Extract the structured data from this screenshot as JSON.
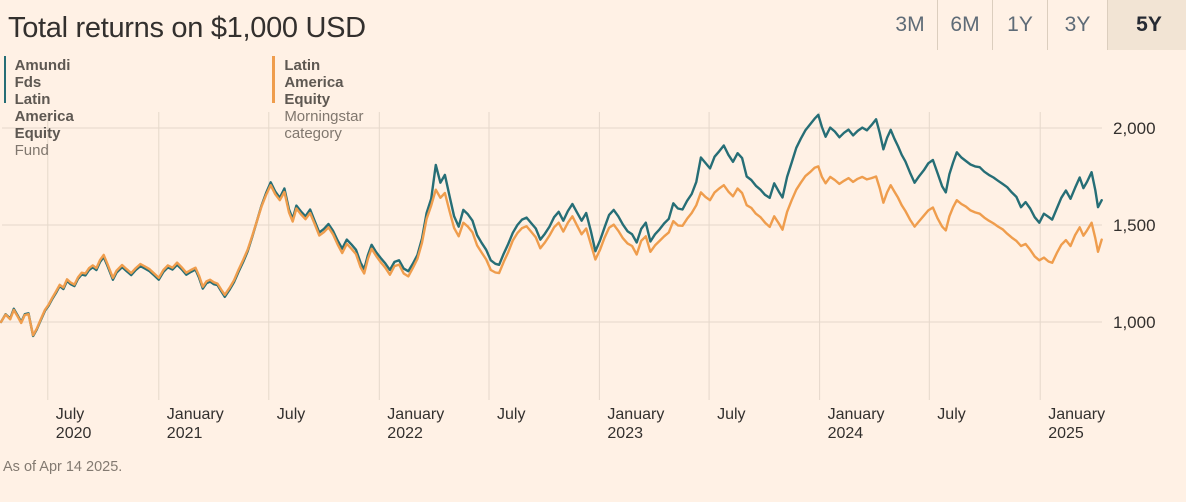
{
  "title": "Total returns on $1,000 USD",
  "footer": {
    "as_of": "As of Apr 14 2025."
  },
  "ranges": [
    {
      "label": "3M",
      "selected": false
    },
    {
      "label": "6M",
      "selected": false
    },
    {
      "label": "1Y",
      "selected": false
    },
    {
      "label": "3Y",
      "selected": false
    },
    {
      "label": "5Y",
      "selected": true
    }
  ],
  "legend": [
    {
      "name": "Amundi Fds Latin America Equity",
      "sub": "Fund",
      "color": "#266E76"
    },
    {
      "name": "Latin America Equity",
      "sub": "Morningstar category",
      "color": "#EF9D4D"
    }
  ],
  "chart_data": {
    "type": "line",
    "title": "Total returns on $1,000 USD",
    "x_unit": "months since 14 Apr 2020",
    "x_range_months": [
      0,
      60
    ],
    "grid": true,
    "grid_color": "#E5D8CB",
    "tick_label_color": "#33302E",
    "ylim": [
      870,
      2150
    ],
    "y_ticks": [
      {
        "v": 1000,
        "label": "1,000"
      },
      {
        "v": 1500,
        "label": "1,500"
      },
      {
        "v": 2000,
        "label": "2,000"
      }
    ],
    "x_ticks": [
      {
        "m": 2.55,
        "line1": "July",
        "line2": "2020"
      },
      {
        "m": 8.6,
        "line1": "January",
        "line2": "2021"
      },
      {
        "m": 14.6,
        "line1": "July",
        "line2": ""
      },
      {
        "m": 20.62,
        "line1": "January",
        "line2": "2022"
      },
      {
        "m": 26.6,
        "line1": "July",
        "line2": ""
      },
      {
        "m": 32.62,
        "line1": "January",
        "line2": "2023"
      },
      {
        "m": 38.6,
        "line1": "July",
        "line2": ""
      },
      {
        "m": 44.62,
        "line1": "January",
        "line2": "2024"
      },
      {
        "m": 50.6,
        "line1": "July",
        "line2": ""
      },
      {
        "m": 56.65,
        "line1": "January",
        "line2": "2025"
      }
    ],
    "series": [
      {
        "name": "Amundi Fds Latin America Equity Fund",
        "color": "#266E76",
        "col": 1
      },
      {
        "name": "Latin America Equity Morningstar category",
        "color": "#EF9D4D",
        "col": 2
      }
    ],
    "rows": [
      [
        0,
        1000,
        1000
      ],
      [
        0.25,
        1040,
        1038
      ],
      [
        0.5,
        1018,
        1014
      ],
      [
        0.7,
        1068,
        1062
      ],
      [
        0.9,
        1035,
        1030
      ],
      [
        1.1,
        1000,
        995
      ],
      [
        1.3,
        1040,
        1036
      ],
      [
        1.5,
        1045,
        1040
      ],
      [
        1.75,
        928,
        932
      ],
      [
        1.95,
        962,
        966
      ],
      [
        2.15,
        1005,
        1010
      ],
      [
        2.4,
        1058,
        1063
      ],
      [
        2.6,
        1085,
        1090
      ],
      [
        2.8,
        1120,
        1126
      ],
      [
        3,
        1150,
        1157
      ],
      [
        3.2,
        1185,
        1192
      ],
      [
        3.4,
        1170,
        1178
      ],
      [
        3.6,
        1212,
        1220
      ],
      [
        3.8,
        1195,
        1203
      ],
      [
        4,
        1185,
        1193
      ],
      [
        4.2,
        1222,
        1230
      ],
      [
        4.4,
        1245,
        1254
      ],
      [
        4.6,
        1240,
        1250
      ],
      [
        4.8,
        1268,
        1278
      ],
      [
        5,
        1282,
        1292
      ],
      [
        5.2,
        1268,
        1278
      ],
      [
        5.4,
        1310,
        1320
      ],
      [
        5.6,
        1335,
        1346
      ],
      [
        5.8,
        1290,
        1300
      ],
      [
        6.1,
        1218,
        1228
      ],
      [
        6.3,
        1255,
        1265
      ],
      [
        6.6,
        1283,
        1294
      ],
      [
        6.85,
        1262,
        1272
      ],
      [
        7.1,
        1242,
        1252
      ],
      [
        7.35,
        1268,
        1278
      ],
      [
        7.6,
        1288,
        1299
      ],
      [
        7.85,
        1275,
        1286
      ],
      [
        8.1,
        1262,
        1272
      ],
      [
        8.35,
        1240,
        1250
      ],
      [
        8.6,
        1218,
        1228
      ],
      [
        8.85,
        1258,
        1268
      ],
      [
        9.1,
        1282,
        1292
      ],
      [
        9.35,
        1270,
        1280
      ],
      [
        9.6,
        1295,
        1306
      ],
      [
        9.85,
        1272,
        1282
      ],
      [
        10.1,
        1244,
        1254
      ],
      [
        10.35,
        1258,
        1268
      ],
      [
        10.6,
        1270,
        1280
      ],
      [
        10.8,
        1228,
        1238
      ],
      [
        11,
        1172,
        1182
      ],
      [
        11.2,
        1200,
        1210
      ],
      [
        11.4,
        1208,
        1218
      ],
      [
        11.6,
        1195,
        1205
      ],
      [
        11.8,
        1190,
        1198
      ],
      [
        12,
        1160,
        1168
      ],
      [
        12.2,
        1130,
        1140
      ],
      [
        12.45,
        1165,
        1175
      ],
      [
        12.7,
        1205,
        1215
      ],
      [
        12.95,
        1260,
        1270
      ],
      [
        13.2,
        1310,
        1320
      ],
      [
        13.45,
        1365,
        1373
      ],
      [
        13.7,
        1440,
        1445
      ],
      [
        13.95,
        1520,
        1520
      ],
      [
        14.2,
        1600,
        1595
      ],
      [
        14.45,
        1665,
        1655
      ],
      [
        14.7,
        1720,
        1705
      ],
      [
        14.95,
        1672,
        1658
      ],
      [
        15.2,
        1640,
        1628
      ],
      [
        15.45,
        1688,
        1670
      ],
      [
        15.7,
        1580,
        1565
      ],
      [
        15.9,
        1532,
        1518
      ],
      [
        16.1,
        1600,
        1585
      ],
      [
        16.35,
        1570,
        1555
      ],
      [
        16.6,
        1545,
        1530
      ],
      [
        16.85,
        1580,
        1562
      ],
      [
        17.1,
        1520,
        1505
      ],
      [
        17.35,
        1462,
        1446
      ],
      [
        17.6,
        1480,
        1463
      ],
      [
        17.85,
        1505,
        1488
      ],
      [
        18.1,
        1470,
        1452
      ],
      [
        18.35,
        1420,
        1400
      ],
      [
        18.6,
        1378,
        1355
      ],
      [
        18.85,
        1425,
        1403
      ],
      [
        19.1,
        1400,
        1378
      ],
      [
        19.35,
        1372,
        1350
      ],
      [
        19.6,
        1305,
        1282
      ],
      [
        19.8,
        1272,
        1250
      ],
      [
        20,
        1345,
        1325
      ],
      [
        20.2,
        1398,
        1378
      ],
      [
        20.45,
        1360,
        1340
      ],
      [
        20.7,
        1330,
        1308
      ],
      [
        20.95,
        1302,
        1280
      ],
      [
        21.2,
        1268,
        1244
      ],
      [
        21.45,
        1310,
        1288
      ],
      [
        21.7,
        1318,
        1296
      ],
      [
        21.95,
        1275,
        1250
      ],
      [
        22.2,
        1262,
        1235
      ],
      [
        22.45,
        1300,
        1278
      ],
      [
        22.7,
        1345,
        1325
      ],
      [
        22.95,
        1430,
        1408
      ],
      [
        23.2,
        1562,
        1532
      ],
      [
        23.45,
        1635,
        1600
      ],
      [
        23.7,
        1810,
        1682
      ],
      [
        23.95,
        1718,
        1640
      ],
      [
        24.2,
        1758,
        1665
      ],
      [
        24.45,
        1650,
        1572
      ],
      [
        24.7,
        1545,
        1485
      ],
      [
        24.95,
        1492,
        1442
      ],
      [
        25.2,
        1578,
        1512
      ],
      [
        25.45,
        1555,
        1492
      ],
      [
        25.7,
        1522,
        1462
      ],
      [
        25.95,
        1448,
        1395
      ],
      [
        26.2,
        1408,
        1358
      ],
      [
        26.45,
        1372,
        1322
      ],
      [
        26.7,
        1318,
        1268
      ],
      [
        26.95,
        1300,
        1255
      ],
      [
        27.15,
        1295,
        1252
      ],
      [
        27.4,
        1352,
        1310
      ],
      [
        27.65,
        1402,
        1360
      ],
      [
        27.9,
        1460,
        1420
      ],
      [
        28.15,
        1500,
        1458
      ],
      [
        28.4,
        1528,
        1484
      ],
      [
        28.65,
        1538,
        1494
      ],
      [
        28.9,
        1510,
        1465
      ],
      [
        29.15,
        1482,
        1436
      ],
      [
        29.4,
        1425,
        1380
      ],
      [
        29.65,
        1455,
        1410
      ],
      [
        29.9,
        1492,
        1446
      ],
      [
        30.15,
        1540,
        1488
      ],
      [
        30.4,
        1568,
        1512
      ],
      [
        30.65,
        1522,
        1466
      ],
      [
        30.9,
        1572,
        1512
      ],
      [
        31.15,
        1608,
        1545
      ],
      [
        31.4,
        1565,
        1498
      ],
      [
        31.65,
        1522,
        1452
      ],
      [
        31.9,
        1562,
        1482
      ],
      [
        32.15,
        1470,
        1402
      ],
      [
        32.4,
        1365,
        1322
      ],
      [
        32.65,
        1420,
        1372
      ],
      [
        32.9,
        1488,
        1435
      ],
      [
        33.15,
        1552,
        1486
      ],
      [
        33.4,
        1578,
        1502
      ],
      [
        33.65,
        1545,
        1470
      ],
      [
        33.9,
        1502,
        1432
      ],
      [
        34.15,
        1468,
        1405
      ],
      [
        34.4,
        1452,
        1392
      ],
      [
        34.65,
        1410,
        1348
      ],
      [
        34.9,
        1480,
        1418
      ],
      [
        35.15,
        1512,
        1442
      ],
      [
        35.4,
        1415,
        1362
      ],
      [
        35.65,
        1452,
        1395
      ],
      [
        35.9,
        1478,
        1418
      ],
      [
        36.15,
        1508,
        1442
      ],
      [
        36.4,
        1532,
        1462
      ],
      [
        36.65,
        1612,
        1520
      ],
      [
        36.9,
        1585,
        1498
      ],
      [
        37.15,
        1580,
        1496
      ],
      [
        37.4,
        1625,
        1532
      ],
      [
        37.65,
        1660,
        1562
      ],
      [
        37.9,
        1722,
        1602
      ],
      [
        38.15,
        1848,
        1668
      ],
      [
        38.4,
        1820,
        1645
      ],
      [
        38.65,
        1792,
        1628
      ],
      [
        38.9,
        1852,
        1668
      ],
      [
        39.15,
        1880,
        1688
      ],
      [
        39.4,
        1910,
        1705
      ],
      [
        39.65,
        1862,
        1672
      ],
      [
        39.9,
        1826,
        1648
      ],
      [
        40.15,
        1870,
        1688
      ],
      [
        40.4,
        1845,
        1665
      ],
      [
        40.65,
        1750,
        1602
      ],
      [
        40.9,
        1732,
        1588
      ],
      [
        41.15,
        1702,
        1558
      ],
      [
        41.4,
        1682,
        1540
      ],
      [
        41.65,
        1655,
        1512
      ],
      [
        41.9,
        1640,
        1490
      ],
      [
        42.15,
        1715,
        1545
      ],
      [
        42.4,
        1672,
        1508
      ],
      [
        42.6,
        1642,
        1476
      ],
      [
        42.85,
        1748,
        1568
      ],
      [
        43.1,
        1822,
        1628
      ],
      [
        43.35,
        1898,
        1682
      ],
      [
        43.6,
        1945,
        1718
      ],
      [
        43.85,
        1988,
        1752
      ],
      [
        44.1,
        2018,
        1772
      ],
      [
        44.35,
        2048,
        1795
      ],
      [
        44.55,
        2068,
        1802
      ],
      [
        44.75,
        2005,
        1748
      ],
      [
        44.95,
        1955,
        1715
      ],
      [
        45.2,
        2002,
        1748
      ],
      [
        45.45,
        1982,
        1732
      ],
      [
        45.7,
        1952,
        1712
      ],
      [
        45.95,
        1975,
        1728
      ],
      [
        46.2,
        1992,
        1742
      ],
      [
        46.45,
        1962,
        1722
      ],
      [
        46.7,
        1985,
        1738
      ],
      [
        46.95,
        2002,
        1748
      ],
      [
        47.2,
        1988,
        1735
      ],
      [
        47.45,
        2015,
        1742
      ],
      [
        47.7,
        2045,
        1750
      ],
      [
        47.9,
        1975,
        1690
      ],
      [
        48.1,
        1890,
        1615
      ],
      [
        48.3,
        1950,
        1668
      ],
      [
        48.5,
        1990,
        1705
      ],
      [
        48.7,
        1945,
        1672
      ],
      [
        48.9,
        1905,
        1640
      ],
      [
        49.1,
        1862,
        1602
      ],
      [
        49.3,
        1828,
        1572
      ],
      [
        49.55,
        1770,
        1528
      ],
      [
        49.8,
        1718,
        1492
      ],
      [
        50.05,
        1752,
        1520
      ],
      [
        50.3,
        1782,
        1548
      ],
      [
        50.55,
        1818,
        1575
      ],
      [
        50.8,
        1835,
        1590
      ],
      [
        51.05,
        1768,
        1535
      ],
      [
        51.3,
        1700,
        1492
      ],
      [
        51.5,
        1668,
        1472
      ],
      [
        51.7,
        1762,
        1545
      ],
      [
        51.9,
        1822,
        1592
      ],
      [
        52.1,
        1875,
        1628
      ],
      [
        52.35,
        1848,
        1608
      ],
      [
        52.6,
        1830,
        1595
      ],
      [
        52.85,
        1812,
        1575
      ],
      [
        53.1,
        1802,
        1565
      ],
      [
        53.35,
        1798,
        1558
      ],
      [
        53.6,
        1775,
        1538
      ],
      [
        53.85,
        1758,
        1522
      ],
      [
        54.1,
        1745,
        1508
      ],
      [
        54.35,
        1728,
        1492
      ],
      [
        54.6,
        1712,
        1478
      ],
      [
        54.85,
        1695,
        1455
      ],
      [
        55.1,
        1668,
        1435
      ],
      [
        55.35,
        1645,
        1418
      ],
      [
        55.6,
        1592,
        1392
      ],
      [
        55.85,
        1618,
        1402
      ],
      [
        56.1,
        1585,
        1372
      ],
      [
        56.35,
        1540,
        1338
      ],
      [
        56.6,
        1512,
        1318
      ],
      [
        56.85,
        1558,
        1332
      ],
      [
        57.1,
        1542,
        1312
      ],
      [
        57.3,
        1528,
        1305
      ],
      [
        57.55,
        1585,
        1355
      ],
      [
        57.8,
        1640,
        1398
      ],
      [
        58.05,
        1678,
        1422
      ],
      [
        58.3,
        1635,
        1392
      ],
      [
        58.55,
        1692,
        1448
      ],
      [
        58.8,
        1745,
        1488
      ],
      [
        59,
        1690,
        1445
      ],
      [
        59.2,
        1722,
        1472
      ],
      [
        59.45,
        1772,
        1512
      ],
      [
        59.65,
        1680,
        1432
      ],
      [
        59.8,
        1592,
        1362
      ],
      [
        60,
        1628,
        1425
      ]
    ]
  }
}
